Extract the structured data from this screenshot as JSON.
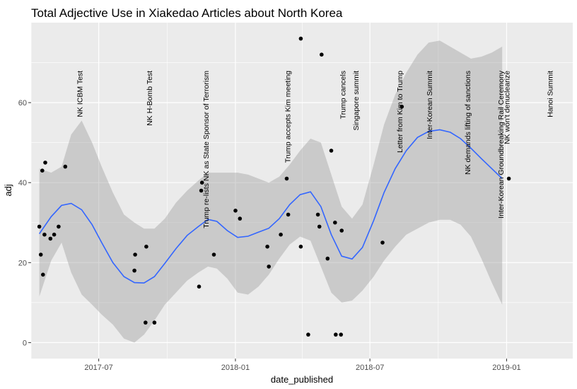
{
  "chart_data": {
    "type": "scatter",
    "title": "Total Adjective Use in Xiakedao Articles about North Korea",
    "xlabel": "date_published",
    "ylabel": "adj",
    "x_type": "date",
    "xlim": [
      "2017-04-01",
      "2019-03-31"
    ],
    "ylim": [
      -4,
      80
    ],
    "x_ticks": [
      {
        "value": "2017-07-01",
        "label": "2017-07"
      },
      {
        "value": "2018-01-01",
        "label": "2018-01"
      },
      {
        "value": "2018-07-01",
        "label": "2018-07"
      },
      {
        "value": "2019-01-01",
        "label": "2019-01"
      }
    ],
    "x_minor_ticks": [
      "2017-04-01",
      "2017-10-01",
      "2018-04-01",
      "2018-10-01",
      "2019-04-01"
    ],
    "y_ticks": [
      0,
      20,
      40,
      60
    ],
    "y_minor_ticks": [
      10,
      30,
      50,
      70
    ],
    "grid": true,
    "colors": {
      "panel": "#ebebeb",
      "grid": "#ffffff",
      "point": "#000000",
      "smooth_line": "#3366ff",
      "ribbon": "#999999"
    },
    "points": [
      {
        "x": "2017-04-12",
        "y": 29
      },
      {
        "x": "2017-04-14",
        "y": 22
      },
      {
        "x": "2017-04-16",
        "y": 43
      },
      {
        "x": "2017-04-17",
        "y": 17
      },
      {
        "x": "2017-04-19",
        "y": 27
      },
      {
        "x": "2017-04-20",
        "y": 45
      },
      {
        "x": "2017-04-27",
        "y": 26
      },
      {
        "x": "2017-05-02",
        "y": 27
      },
      {
        "x": "2017-05-08",
        "y": 29
      },
      {
        "x": "2017-05-17",
        "y": 44
      },
      {
        "x": "2017-08-18",
        "y": 18
      },
      {
        "x": "2017-08-19",
        "y": 22
      },
      {
        "x": "2017-09-02",
        "y": 5
      },
      {
        "x": "2017-09-03",
        "y": 24
      },
      {
        "x": "2017-09-14",
        "y": 5
      },
      {
        "x": "2017-11-13",
        "y": 14
      },
      {
        "x": "2017-11-16",
        "y": 38
      },
      {
        "x": "2017-11-17",
        "y": 40
      },
      {
        "x": "2017-12-03",
        "y": 22
      },
      {
        "x": "2018-01-01",
        "y": 33
      },
      {
        "x": "2018-01-07",
        "y": 31
      },
      {
        "x": "2018-02-13",
        "y": 24
      },
      {
        "x": "2018-02-15",
        "y": 19
      },
      {
        "x": "2018-03-03",
        "y": 27
      },
      {
        "x": "2018-03-11",
        "y": 41
      },
      {
        "x": "2018-03-13",
        "y": 32
      },
      {
        "x": "2018-03-30",
        "y": 24
      },
      {
        "x": "2018-03-30",
        "y": 76
      },
      {
        "x": "2018-04-09",
        "y": 2
      },
      {
        "x": "2018-04-22",
        "y": 32
      },
      {
        "x": "2018-04-24",
        "y": 29
      },
      {
        "x": "2018-04-27",
        "y": 72
      },
      {
        "x": "2018-05-05",
        "y": 21
      },
      {
        "x": "2018-05-10",
        "y": 48
      },
      {
        "x": "2018-05-15",
        "y": 30
      },
      {
        "x": "2018-05-16",
        "y": 2
      },
      {
        "x": "2018-05-23",
        "y": 2
      },
      {
        "x": "2018-05-24",
        "y": 28
      },
      {
        "x": "2018-07-18",
        "y": 25
      },
      {
        "x": "2018-08-13",
        "y": 59
      },
      {
        "x": "2019-01-04",
        "y": 41
      }
    ],
    "smooth": [
      {
        "x": "2017-04-12",
        "y": 27.2,
        "lo": 11.5,
        "hi": 43.5
      },
      {
        "x": "2017-04-28",
        "y": 31.5,
        "lo": 20.5,
        "hi": 42.5
      },
      {
        "x": "2017-05-12",
        "y": 34.3,
        "lo": 25.0,
        "hi": 44.0
      },
      {
        "x": "2017-05-25",
        "y": 34.8,
        "lo": 17.5,
        "hi": 52.0
      },
      {
        "x": "2017-06-08",
        "y": 33.2,
        "lo": 12.0,
        "hi": 55.5
      },
      {
        "x": "2017-06-22",
        "y": 29.5,
        "lo": 9.5,
        "hi": 50.0
      },
      {
        "x": "2017-07-05",
        "y": 25.0,
        "lo": 7.0,
        "hi": 44.0
      },
      {
        "x": "2017-07-20",
        "y": 20.0,
        "lo": 4.5,
        "hi": 37.5
      },
      {
        "x": "2017-08-04",
        "y": 16.5,
        "lo": 1.0,
        "hi": 32.0
      },
      {
        "x": "2017-08-18",
        "y": 15.0,
        "lo": 0.0,
        "hi": 30.0
      },
      {
        "x": "2017-08-31",
        "y": 14.9,
        "lo": 2.0,
        "hi": 28.5
      },
      {
        "x": "2017-09-14",
        "y": 16.5,
        "lo": 5.5,
        "hi": 28.5
      },
      {
        "x": "2017-09-28",
        "y": 19.8,
        "lo": 9.5,
        "hi": 31.0
      },
      {
        "x": "2017-10-13",
        "y": 23.5,
        "lo": 12.5,
        "hi": 35.0
      },
      {
        "x": "2017-10-28",
        "y": 26.8,
        "lo": 15.5,
        "hi": 38.0
      },
      {
        "x": "2017-11-12",
        "y": 29.0,
        "lo": 17.5,
        "hi": 40.5
      },
      {
        "x": "2017-11-25",
        "y": 30.8,
        "lo": 19.0,
        "hi": 42.5
      },
      {
        "x": "2017-12-07",
        "y": 30.3,
        "lo": 18.5,
        "hi": 42.5
      },
      {
        "x": "2017-12-21",
        "y": 28.0,
        "lo": 16.0,
        "hi": 42.5
      },
      {
        "x": "2018-01-04",
        "y": 26.3,
        "lo": 12.5,
        "hi": 42.5
      },
      {
        "x": "2018-01-18",
        "y": 26.6,
        "lo": 12.0,
        "hi": 42.0
      },
      {
        "x": "2018-02-01",
        "y": 27.6,
        "lo": 14.0,
        "hi": 41.0
      },
      {
        "x": "2018-02-15",
        "y": 28.6,
        "lo": 17.0,
        "hi": 40.0
      },
      {
        "x": "2018-03-01",
        "y": 31.0,
        "lo": 21.0,
        "hi": 41.5
      },
      {
        "x": "2018-03-15",
        "y": 34.5,
        "lo": 24.5,
        "hi": 44.5
      },
      {
        "x": "2018-03-29",
        "y": 37.0,
        "lo": 26.5,
        "hi": 48.0
      },
      {
        "x": "2018-04-12",
        "y": 37.7,
        "lo": 25.5,
        "hi": 51.0
      },
      {
        "x": "2018-04-26",
        "y": 34.0,
        "lo": 19.0,
        "hi": 50.0
      },
      {
        "x": "2018-05-10",
        "y": 27.0,
        "lo": 12.5,
        "hi": 42.0
      },
      {
        "x": "2018-05-24",
        "y": 21.6,
        "lo": 10.0,
        "hi": 34.0
      },
      {
        "x": "2018-06-07",
        "y": 20.9,
        "lo": 10.5,
        "hi": 31.0
      },
      {
        "x": "2018-06-21",
        "y": 23.8,
        "lo": 13.0,
        "hi": 34.5
      },
      {
        "x": "2018-07-06",
        "y": 30.5,
        "lo": 16.5,
        "hi": 44.5
      },
      {
        "x": "2018-07-20",
        "y": 37.5,
        "lo": 20.5,
        "hi": 54.5
      },
      {
        "x": "2018-08-04",
        "y": 43.5,
        "lo": 24.0,
        "hi": 62.0
      },
      {
        "x": "2018-08-19",
        "y": 48.0,
        "lo": 27.0,
        "hi": 67.5
      },
      {
        "x": "2018-09-03",
        "y": 51.3,
        "lo": 28.5,
        "hi": 72.0
      },
      {
        "x": "2018-09-18",
        "y": 52.8,
        "lo": 30.0,
        "hi": 75.0
      },
      {
        "x": "2018-10-03",
        "y": 53.2,
        "lo": 30.7,
        "hi": 75.5
      },
      {
        "x": "2018-10-17",
        "y": 52.6,
        "lo": 30.7,
        "hi": 74.0
      },
      {
        "x": "2018-10-31",
        "y": 51.0,
        "lo": 29.5,
        "hi": 72.5
      },
      {
        "x": "2018-11-14",
        "y": 48.6,
        "lo": 26.5,
        "hi": 71.0
      },
      {
        "x": "2018-11-28",
        "y": 46.0,
        "lo": 21.0,
        "hi": 71.5
      },
      {
        "x": "2018-12-12",
        "y": 43.5,
        "lo": 15.0,
        "hi": 72.5
      },
      {
        "x": "2018-12-26",
        "y": 41.0,
        "lo": 9.5,
        "hi": 74.0
      }
    ],
    "annotations": [
      {
        "x": "2017-06-05",
        "label": "NK ICBM Test"
      },
      {
        "x": "2017-09-07",
        "label": "NK H-Bomb Test"
      },
      {
        "x": "2017-11-22",
        "label": "Trump re-lists NK as State Sponsor of Terrorism"
      },
      {
        "x": "2018-03-12",
        "label": "Trump accepts Kim meeting"
      },
      {
        "x": "2018-05-25",
        "label": "Trump cancels"
      },
      {
        "x": "2018-06-12",
        "label": "Singapore summit"
      },
      {
        "x": "2018-08-10",
        "label": "Letter from Kim to Trump"
      },
      {
        "x": "2018-09-19",
        "label": "Inter-Korean Summit"
      },
      {
        "x": "2018-11-09",
        "label": "NK demands lifting of sanctions"
      },
      {
        "x": "2018-12-24",
        "label": "Inter-Korean Groundbreaking Rail Ceremony"
      },
      {
        "x": "2019-01-01",
        "label": "NK won't denuclearize"
      },
      {
        "x": "2019-02-28",
        "label": "Hanoi Summit"
      }
    ]
  }
}
